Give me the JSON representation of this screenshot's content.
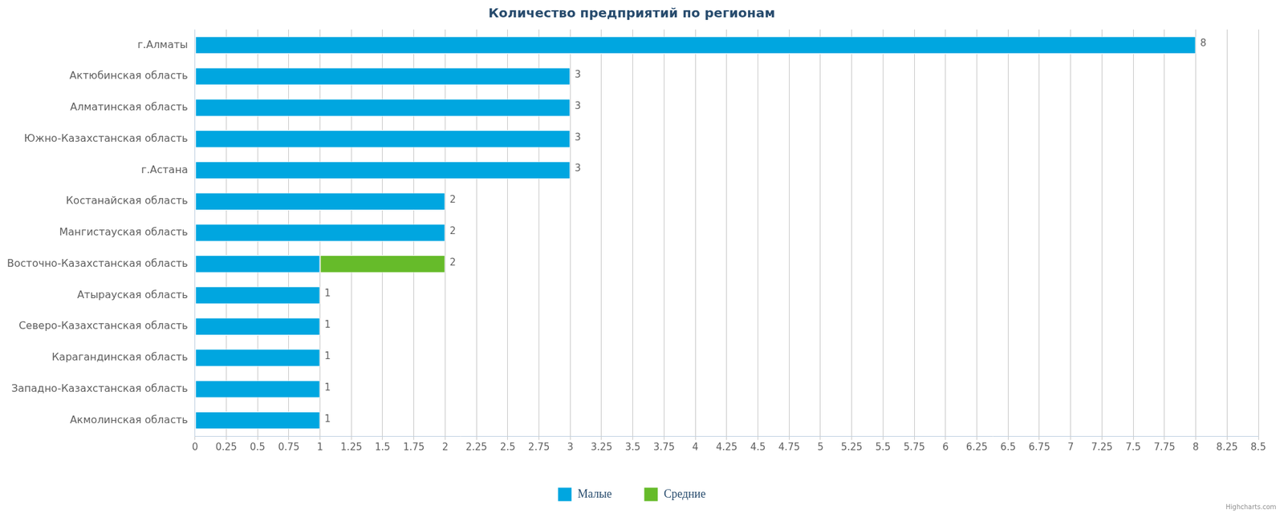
{
  "chart_data": {
    "type": "bar",
    "orientation": "horizontal",
    "stacked": true,
    "title": "Количество предприятий по регионам",
    "categories": [
      "г.Алматы",
      "Актюбинская область",
      "Алматинская область",
      "Южно-Казахстанская область",
      "г.Астана",
      "Костанайская область",
      "Мангистауская область",
      "Восточно-Казахстанская область",
      "Атырауская область",
      "Северо-Казахстанская область",
      "Карагандинская область",
      "Западно-Казахстанская область",
      "Акмолинская область"
    ],
    "series": [
      {
        "name": "Малые",
        "color": "#00a6e0",
        "values": [
          8,
          3,
          3,
          3,
          3,
          2,
          2,
          1,
          1,
          1,
          1,
          1,
          1
        ]
      },
      {
        "name": "Средние",
        "color": "#66bb2a",
        "values": [
          null,
          null,
          null,
          null,
          null,
          null,
          null,
          1,
          null,
          null,
          null,
          null,
          null
        ]
      }
    ],
    "totals": [
      8,
      3,
      3,
      3,
      3,
      2,
      2,
      2,
      1,
      1,
      1,
      1,
      1
    ],
    "data_labels": true,
    "xlim": [
      0,
      8.5
    ],
    "xticks": [
      0,
      0.25,
      0.5,
      0.75,
      1,
      1.25,
      1.5,
      1.75,
      2,
      2.25,
      2.5,
      2.75,
      3,
      3.25,
      3.5,
      3.75,
      4,
      4.25,
      4.5,
      4.75,
      5,
      5.25,
      5.5,
      5.75,
      6,
      6.25,
      6.5,
      6.75,
      7,
      7.25,
      7.5,
      7.75,
      8,
      8.25,
      8.5
    ],
    "grid": true,
    "legend": "bottom",
    "credits": "Highcharts.com"
  }
}
